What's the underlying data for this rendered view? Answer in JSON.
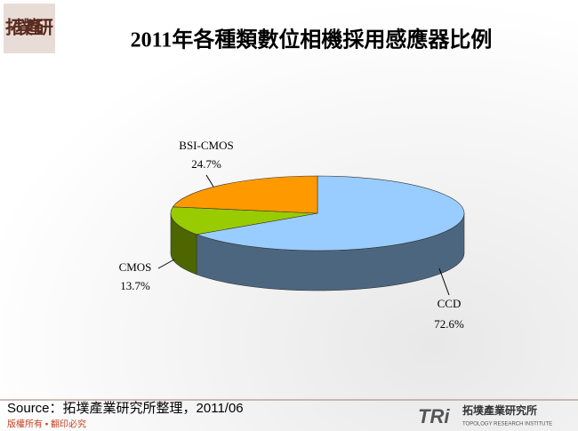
{
  "logo": "拓墣產研",
  "chart_data": {
    "type": "pie3d",
    "title": "2011年各種類數位相機採用感應器比例",
    "categories": [
      "CCD",
      "CMOS",
      "BSI-CMOS"
    ],
    "values": [
      72.6,
      13.7,
      24.7
    ],
    "value_labels": [
      "72.6%",
      "13.7%",
      "24.7%"
    ],
    "colors": [
      "#99ccff",
      "#99cc00",
      "#ff9900"
    ]
  },
  "source": "Source：拓墣產業研究所整理，2011/06",
  "copyright": "版權所有 • 翻印必究",
  "brand": {
    "mark": "TRi",
    "name": "拓墣產業研究所",
    "english": "TOPOLOGY RESEARCH INSTITUTE"
  }
}
